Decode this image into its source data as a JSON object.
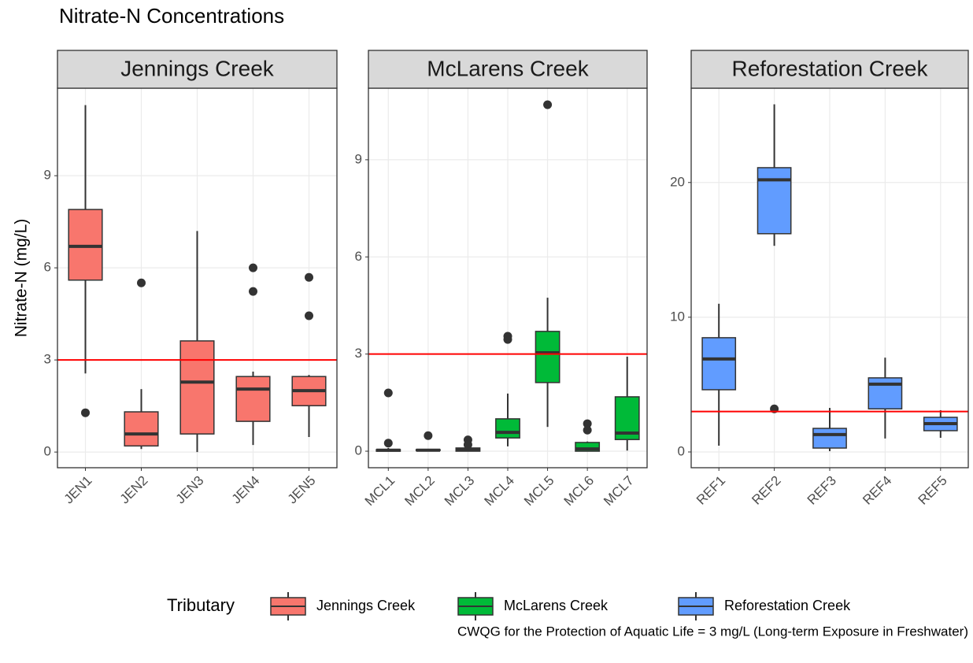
{
  "title": "Nitrate-N Concentrations",
  "y_label": "Nitrate-N (mg/L)",
  "legend_title": "Tributary",
  "caption": "CWQG for the Protection of Aquatic Life = 3 mg/L (Long-term Exposure in Freshwater)",
  "chart_data": [
    {
      "type": "box",
      "title": "Jennings Creek",
      "categories": [
        "JEN1",
        "JEN2",
        "JEN3",
        "JEN4",
        "JEN5"
      ],
      "ylim": [
        -0.51,
        11.85
      ],
      "yticks": [
        0,
        3,
        6,
        9
      ],
      "grid": true,
      "hline": 3,
      "hline_color": "#ff0000",
      "series": [
        {
          "name": "Jennings Creek",
          "color": "#F8766D",
          "min": [
            2.56,
            0.1,
            0,
            0.23,
            0.49
          ],
          "q1": [
            5.6,
            0.2,
            0.59,
            1.0,
            1.51
          ],
          "median": [
            6.7,
            0.59,
            2.28,
            2.05,
            2.0
          ],
          "q3": [
            7.9,
            1.31,
            3.62,
            2.46,
            2.46
          ],
          "max": [
            11.3,
            2.05,
            7.2,
            2.62,
            2.51
          ],
          "outliers": [
            [
              1.28
            ],
            [
              5.51
            ],
            [],
            [
              6.0,
              5.23
            ],
            [
              5.69,
              4.44
            ]
          ]
        }
      ]
    },
    {
      "type": "box",
      "title": "McLarens Creek",
      "categories": [
        "MCL1",
        "MCL2",
        "MCL3",
        "MCL4",
        "MCL5",
        "MCL6",
        "MCL7"
      ],
      "ylim": [
        -0.51,
        11.21
      ],
      "yticks": [
        0,
        3,
        6,
        9
      ],
      "grid": true,
      "hline": 3,
      "hline_color": "#ff0000",
      "series": [
        {
          "name": "McLarens Creek",
          "color": "#00BA38",
          "min": [
            0,
            0.02,
            0,
            0.15,
            0.75,
            0,
            0.02
          ],
          "q1": [
            0,
            0.02,
            0,
            0.41,
            2.12,
            0,
            0.36
          ],
          "median": [
            0.03,
            0.03,
            0.05,
            0.58,
            3.04,
            0.07,
            0.56
          ],
          "q3": [
            0.05,
            0.05,
            0.1,
            1.0,
            3.7,
            0.27,
            1.68
          ],
          "max": [
            0.1,
            0.06,
            0.15,
            1.78,
            4.74,
            0.3,
            2.92
          ],
          "outliers": [
            [
              1.8,
              0.25
            ],
            [
              0.48
            ],
            [
              0.35,
              0.2
            ],
            [
              3.55,
              3.45
            ],
            [
              10.7
            ],
            [
              0.85,
              0.65
            ],
            []
          ]
        }
      ]
    },
    {
      "type": "box",
      "title": "Reforestation Creek",
      "categories": [
        "REF1",
        "REF2",
        "REF3",
        "REF4",
        "REF5"
      ],
      "ylim": [
        -1.17,
        27.0
      ],
      "yticks": [
        0,
        10,
        20
      ],
      "grid": true,
      "hline": 3,
      "hline_color": "#ff0000",
      "series": [
        {
          "name": "Reforestation Creek",
          "color": "#619CFF",
          "min": [
            0.47,
            15.3,
            0.06,
            1.0,
            1.05
          ],
          "q1": [
            4.62,
            16.2,
            0.29,
            3.2,
            1.58
          ],
          "median": [
            6.9,
            20.2,
            1.29,
            5.03,
            2.1
          ],
          "q3": [
            8.48,
            21.1,
            1.75,
            5.5,
            2.57
          ],
          "max": [
            11.0,
            25.8,
            3.27,
            7.0,
            3.1
          ],
          "outliers": [
            [],
            [
              3.2
            ],
            [],
            [],
            []
          ]
        }
      ]
    }
  ]
}
